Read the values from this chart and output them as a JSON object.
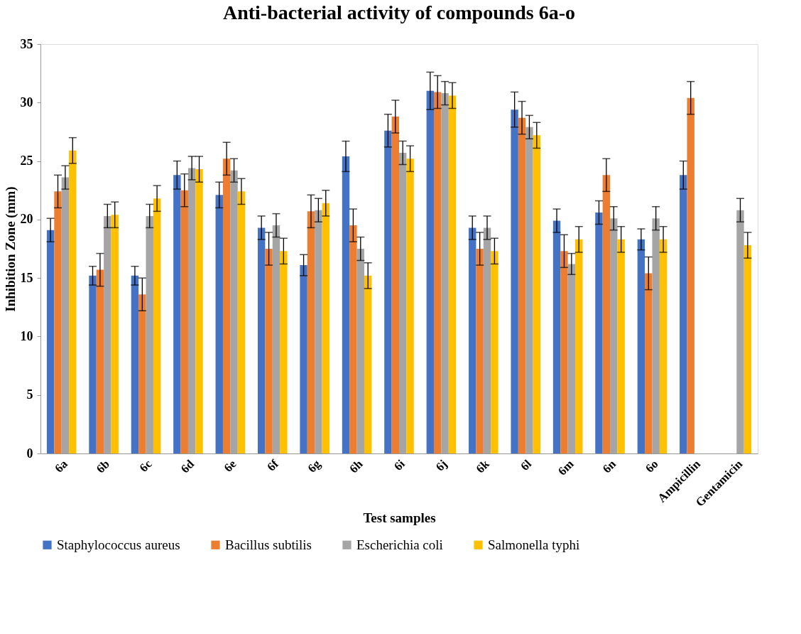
{
  "chart_data": {
    "type": "bar",
    "title": "Anti-bacterial activity of compounds 6a-o",
    "xlabel": "Test samples",
    "ylabel": "Inhibition Zone (mm)",
    "categories": [
      "6a",
      "6b",
      "6c",
      "6d",
      "6e",
      "6f",
      "6g",
      "6h",
      "6i",
      "6j",
      "6k",
      "6l",
      "6m",
      "6n",
      "6o",
      "Ampicillin",
      "Gentamicin"
    ],
    "series": [
      {
        "name": "Staphylococcus aureus",
        "color": "#4472c4",
        "values": [
          19.1,
          15.2,
          15.2,
          23.8,
          22.1,
          19.3,
          16.1,
          25.4,
          27.6,
          31.0,
          19.3,
          29.4,
          19.9,
          20.6,
          18.3,
          23.8,
          null
        ],
        "errors": [
          1.0,
          0.8,
          0.8,
          1.2,
          1.1,
          1.0,
          0.9,
          1.3,
          1.4,
          1.6,
          1.0,
          1.5,
          1.0,
          1.0,
          0.9,
          1.2,
          null
        ]
      },
      {
        "name": "Bacillus subtilis",
        "color": "#ed7d31",
        "values": [
          22.4,
          15.7,
          13.6,
          22.5,
          25.2,
          17.5,
          20.7,
          19.5,
          28.8,
          30.9,
          17.5,
          28.7,
          17.3,
          23.8,
          15.4,
          30.4,
          null
        ],
        "errors": [
          1.4,
          1.4,
          1.4,
          1.4,
          1.4,
          1.4,
          1.4,
          1.4,
          1.4,
          1.4,
          1.4,
          1.4,
          1.4,
          1.4,
          1.4,
          1.4,
          null
        ]
      },
      {
        "name": "Escherichia coli",
        "color": "#a5a5a5",
        "values": [
          23.6,
          20.3,
          20.3,
          24.4,
          24.2,
          19.5,
          20.8,
          17.5,
          25.7,
          30.8,
          19.3,
          27.9,
          16.2,
          20.1,
          20.1,
          null,
          20.8
        ],
        "errors": [
          1.0,
          1.0,
          1.0,
          1.0,
          1.0,
          1.0,
          1.0,
          1.0,
          1.0,
          1.0,
          1.0,
          1.0,
          0.9,
          1.0,
          1.0,
          null,
          1.0
        ]
      },
      {
        "name": "Salmonella typhi",
        "color": "#ffc000",
        "values": [
          25.9,
          20.4,
          21.8,
          24.3,
          22.4,
          17.3,
          21.4,
          15.2,
          25.2,
          30.6,
          17.3,
          27.2,
          18.3,
          18.3,
          18.3,
          null,
          17.8
        ],
        "errors": [
          1.1,
          1.1,
          1.1,
          1.1,
          1.1,
          1.1,
          1.1,
          1.1,
          1.1,
          1.1,
          1.1,
          1.1,
          1.1,
          1.1,
          1.1,
          null,
          1.1
        ]
      }
    ],
    "ylim": [
      0,
      35
    ],
    "yticks": [
      0,
      5,
      10,
      15,
      20,
      25,
      30,
      35
    ],
    "grid": false,
    "legend": "bottom"
  }
}
